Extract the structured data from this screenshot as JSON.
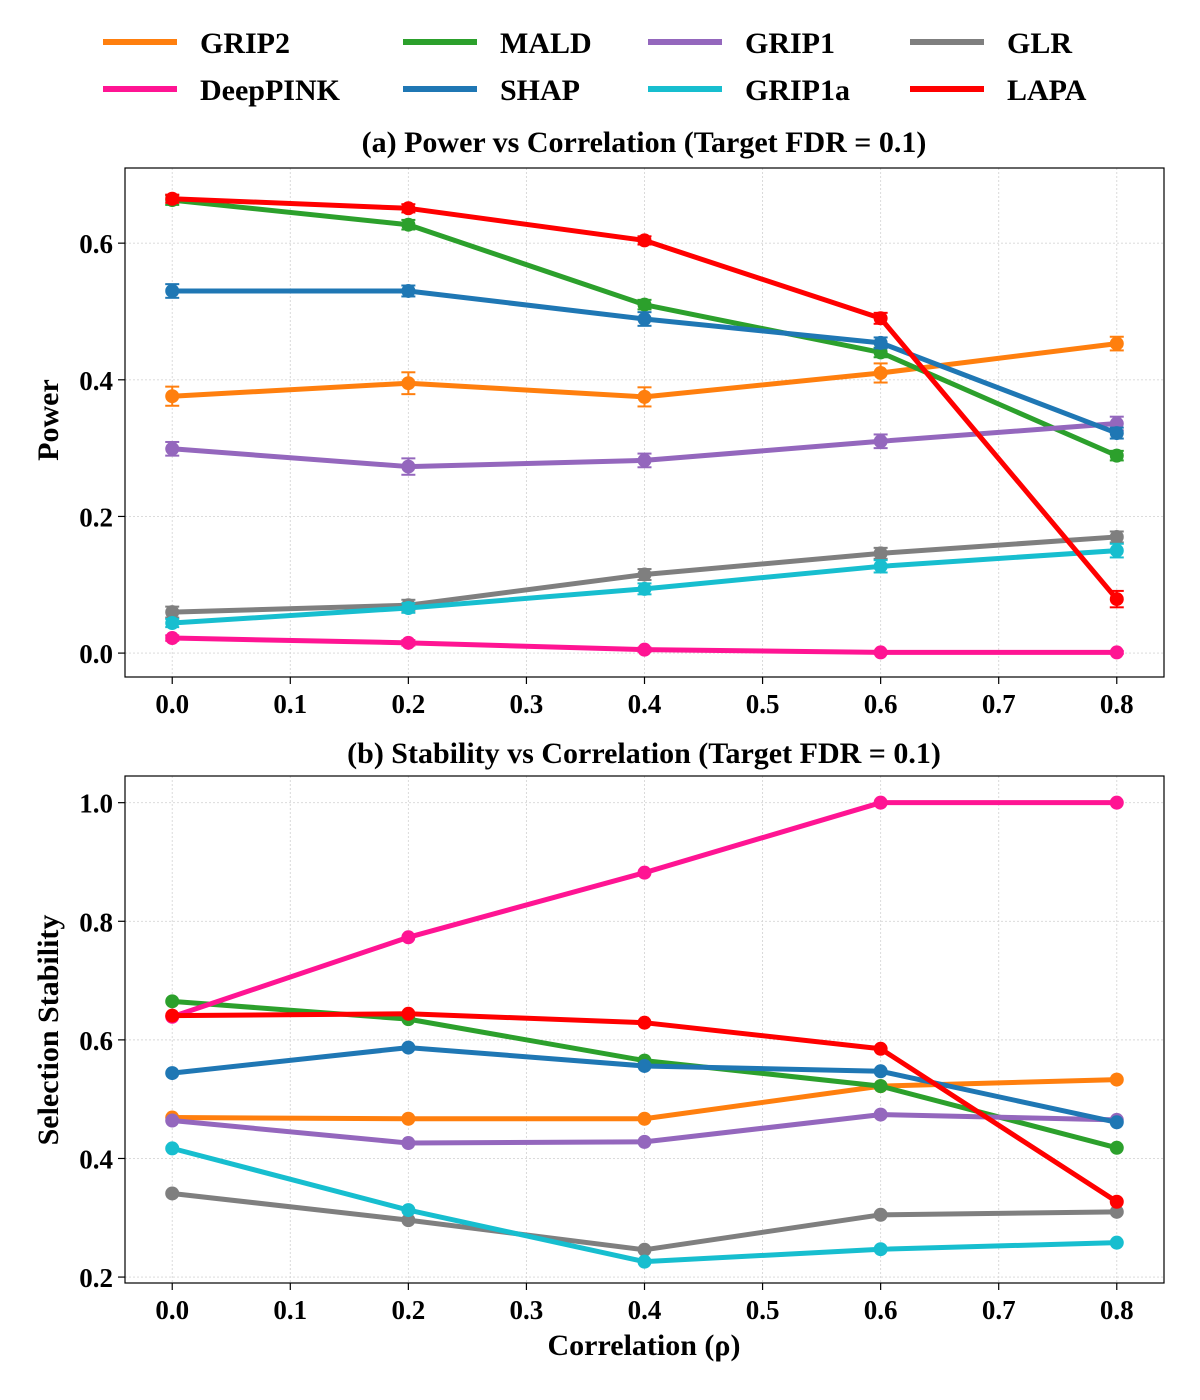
{
  "chart_data": [
    {
      "type": "line",
      "title": "(a) Power vs Correlation (Target FDR = 0.1)",
      "xlabel": "",
      "ylabel": "Power",
      "xlim": [
        -0.04,
        0.84
      ],
      "ylim": [
        -0.035,
        0.71
      ],
      "xticks": [
        0.0,
        0.1,
        0.2,
        0.3,
        0.4,
        0.5,
        0.6,
        0.7,
        0.8
      ],
      "xtick_labels": [
        "0.0",
        "0.1",
        "0.2",
        "0.3",
        "0.4",
        "0.5",
        "0.6",
        "0.7",
        "0.8"
      ],
      "yticks": [
        0.0,
        0.2,
        0.4,
        0.6
      ],
      "ytick_labels": [
        "0.0",
        "0.2",
        "0.4",
        "0.6"
      ],
      "grid": true,
      "x": [
        0.0,
        0.2,
        0.4,
        0.6,
        0.8
      ],
      "series": [
        {
          "name": "GRIP2",
          "values": [
            0.376,
            0.395,
            0.375,
            0.41,
            0.453
          ],
          "errors": [
            0.014,
            0.016,
            0.014,
            0.014,
            0.01
          ]
        },
        {
          "name": "MALD",
          "values": [
            0.663,
            0.627,
            0.51,
            0.44,
            0.289
          ],
          "errors": [
            0.007,
            0.007,
            0.007,
            0.007,
            0.007
          ]
        },
        {
          "name": "GRIP1",
          "values": [
            0.299,
            0.273,
            0.282,
            0.31,
            0.336
          ],
          "errors": [
            0.01,
            0.012,
            0.01,
            0.01,
            0.01
          ]
        },
        {
          "name": "GLR",
          "values": [
            0.06,
            0.07,
            0.115,
            0.146,
            0.17
          ],
          "errors": [
            0.008,
            0.008,
            0.008,
            0.008,
            0.008
          ]
        },
        {
          "name": "DeepPINK",
          "values": [
            0.022,
            0.015,
            0.005,
            0.001,
            0.001
          ],
          "errors": [
            0.004,
            0.004,
            0.003,
            0.002,
            0.002
          ]
        },
        {
          "name": "SHAP",
          "values": [
            0.53,
            0.53,
            0.489,
            0.454,
            0.322
          ],
          "errors": [
            0.01,
            0.008,
            0.01,
            0.008,
            0.008
          ]
        },
        {
          "name": "GRIP1a",
          "values": [
            0.044,
            0.066,
            0.094,
            0.127,
            0.15
          ],
          "errors": [
            0.006,
            0.007,
            0.008,
            0.009,
            0.01
          ]
        },
        {
          "name": "LAPA",
          "values": [
            0.665,
            0.651,
            0.604,
            0.49,
            0.079
          ],
          "errors": [
            0.006,
            0.006,
            0.006,
            0.008,
            0.012
          ]
        }
      ]
    },
    {
      "type": "line",
      "title": "(b) Stability vs Correlation (Target FDR = 0.1)",
      "xlabel": "Correlation (ρ)",
      "ylabel": "Selection Stability",
      "xlim": [
        -0.04,
        0.84
      ],
      "ylim": [
        0.19,
        1.045
      ],
      "xticks": [
        0.0,
        0.1,
        0.2,
        0.3,
        0.4,
        0.5,
        0.6,
        0.7,
        0.8
      ],
      "xtick_labels": [
        "0.0",
        "0.1",
        "0.2",
        "0.3",
        "0.4",
        "0.5",
        "0.6",
        "0.7",
        "0.8"
      ],
      "yticks": [
        0.2,
        0.4,
        0.6,
        0.8,
        1.0
      ],
      "ytick_labels": [
        "0.2",
        "0.4",
        "0.6",
        "0.8",
        "1.0"
      ],
      "grid": true,
      "x": [
        0.0,
        0.2,
        0.4,
        0.6,
        0.8
      ],
      "series": [
        {
          "name": "GRIP2",
          "values": [
            0.469,
            0.467,
            0.467,
            0.522,
            0.533
          ]
        },
        {
          "name": "MALD",
          "values": [
            0.665,
            0.635,
            0.565,
            0.522,
            0.418
          ]
        },
        {
          "name": "GRIP1",
          "values": [
            0.464,
            0.426,
            0.428,
            0.474,
            0.465
          ]
        },
        {
          "name": "GLR",
          "values": [
            0.341,
            0.296,
            0.246,
            0.305,
            0.31
          ]
        },
        {
          "name": "DeepPINK",
          "values": [
            0.639,
            0.773,
            0.882,
            1.0,
            1.0
          ]
        },
        {
          "name": "SHAP",
          "values": [
            0.544,
            0.587,
            0.556,
            0.547,
            0.461
          ]
        },
        {
          "name": "GRIP1a",
          "values": [
            0.417,
            0.313,
            0.226,
            0.247,
            0.258
          ]
        },
        {
          "name": "LAPA",
          "values": [
            0.641,
            0.644,
            0.629,
            0.585,
            0.327
          ]
        }
      ]
    }
  ],
  "legend": {
    "placement": "top",
    "entries": [
      {
        "name": "GRIP2",
        "color": "#ff7f0e"
      },
      {
        "name": "MALD",
        "color": "#2ca02c"
      },
      {
        "name": "GRIP1",
        "color": "#9467bd"
      },
      {
        "name": "GLR",
        "color": "#7f7f7f"
      },
      {
        "name": "DeepPINK",
        "color": "#ff1493"
      },
      {
        "name": "SHAP",
        "color": "#1f77b4"
      },
      {
        "name": "GRIP1a",
        "color": "#17becf"
      },
      {
        "name": "LAPA",
        "color": "#ff0000"
      }
    ]
  }
}
